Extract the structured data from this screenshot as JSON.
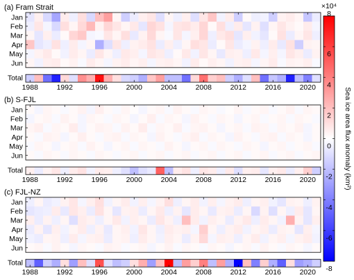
{
  "chart_data": {
    "type": "heatmap",
    "months": [
      "Jan",
      "Feb",
      "Mar",
      "Apr",
      "May",
      "Jun"
    ],
    "total_label": "Total",
    "years": [
      1988,
      1989,
      1990,
      1991,
      1992,
      1993,
      1994,
      1995,
      1996,
      1997,
      1998,
      1999,
      2000,
      2001,
      2002,
      2003,
      2004,
      2005,
      2006,
      2007,
      2008,
      2009,
      2010,
      2011,
      2012,
      2013,
      2014,
      2015,
      2016,
      2017,
      2018,
      2019,
      2020,
      2021
    ],
    "x_ticks": [
      1988,
      1992,
      1996,
      2000,
      2004,
      2008,
      2012,
      2016,
      2020
    ],
    "x_tick_labels": [
      "1988",
      "1992",
      "1996",
      "2000",
      "2004",
      "2008",
      "2012",
      "2016",
      "2020"
    ],
    "colorbar": {
      "label": "Sea ice area flux anomaly (km²)",
      "multiplier": "×10⁴",
      "ticks": [
        8,
        6,
        4,
        2,
        0,
        -2,
        -4,
        -6,
        -8
      ],
      "tick_labels": [
        "8",
        "6",
        "4",
        "2",
        "0",
        "-2",
        "-4",
        "-6",
        "-8"
      ],
      "range": [
        -8,
        8
      ],
      "colors": {
        "max": "#ff0000",
        "mid": "#ffffff",
        "min": "#0000ff"
      }
    },
    "panels": [
      {
        "title": "(a) Fram Strait",
        "monthly": [
          [
            -0.8,
            0.5,
            -1.2,
            -2.8,
            0.6,
            -0.5,
            1.0,
            -1.2,
            2.0,
            3.0,
            0.3,
            -1.5,
            -0.6,
            0.5,
            0.8,
            -1.0,
            0.3,
            -0.5,
            0.5,
            -1.0,
            0.8,
            1.8,
            -0.4,
            0.6,
            -1.5,
            0.2,
            -0.5,
            -0.4,
            -1.5,
            0.4,
            0.6,
            0.3,
            -1.8,
            -0.6
          ],
          [
            -0.5,
            0.8,
            -0.3,
            -1.2,
            1.0,
            0.3,
            1.2,
            2.2,
            0.4,
            1.3,
            0.8,
            0.3,
            0.7,
            -0.8,
            1.3,
            0.9,
            -0.3,
            0.8,
            0.9,
            0.6,
            1.3,
            0.2,
            1.0,
            -0.5,
            0.6,
            -0.8,
            0.4,
            -1.0,
            0.3,
            0.8,
            0.4,
            0.2,
            0.6,
            -0.3
          ],
          [
            0.3,
            -0.8,
            0.5,
            -0.6,
            0.2,
            1.3,
            1.7,
            -0.3,
            -0.2,
            0.8,
            0.3,
            1.0,
            -0.7,
            0.4,
            1.2,
            0.3,
            -0.2,
            0.8,
            -0.3,
            0.5,
            1.3,
            -0.5,
            0.7,
            1.0,
            -0.8,
            0.5,
            -0.4,
            -0.8,
            0.2,
            0.9,
            -0.6,
            0.3,
            0.8,
            -0.5
          ],
          [
            1.8,
            -0.8,
            -0.5,
            0.9,
            -0.5,
            0.6,
            -0.3,
            0.3,
            -2.5,
            -1.0,
            0.8,
            -0.5,
            0.4,
            0.6,
            0.9,
            -0.6,
            0.5,
            -0.5,
            0.3,
            1.0,
            0.8,
            -0.6,
            0.2,
            0.8,
            -0.6,
            -0.3,
            0.4,
            -0.5,
            0.6,
            -0.7,
            0.9,
            -1.5,
            0.4,
            0.3
          ],
          [
            -0.3,
            0.4,
            0.7,
            0.2,
            -0.4,
            0.6,
            0.3,
            -0.6,
            0.8,
            0.3,
            -0.5,
            0.7,
            0.5,
            -0.3,
            0.8,
            0.6,
            -0.5,
            0.2,
            0.7,
            -0.4,
            0.8,
            0.3,
            -0.7,
            0.5,
            0.4,
            -0.5,
            0.7,
            -0.3,
            0.5,
            -0.3,
            0.8,
            0.5,
            -0.6,
            0.4
          ],
          [
            0.3,
            -0.4,
            0.5,
            0.6,
            0.2,
            0.4,
            -0.2,
            0.6,
            0.3,
            -0.3,
            0.4,
            0.6,
            0.3,
            0.5,
            -0.3,
            0.4,
            0.5,
            0.3,
            -0.4,
            0.6,
            0.2,
            0.5,
            0.3,
            -0.4,
            0.4,
            0.5,
            -0.3,
            0.3,
            0.6,
            -0.2,
            0.4,
            0.3,
            0.5,
            -0.2
          ]
        ],
        "total": [
          -1.5,
          2.0,
          -4.5,
          -7.0,
          1.2,
          -1.0,
          3.5,
          2.5,
          7.5,
          2.5,
          1.0,
          -1.2,
          -1.5,
          -2.5,
          1.8,
          3.0,
          -2.0,
          -2.0,
          -4.5,
          1.2,
          4.5,
          1.5,
          2.0,
          -1.5,
          -2.5,
          -1.0,
          2.0,
          -4.5,
          -1.8,
          -2.5,
          -7.0,
          -2.0,
          -4.0,
          -1.0
        ]
      },
      {
        "title": "(b) S-FJL",
        "monthly": [
          [
            0.2,
            -0.3,
            0.3,
            0.2,
            -0.2,
            0.2,
            0.4,
            -0.3,
            0.5,
            0.2,
            -0.2,
            0.3,
            0.1,
            -0.3,
            0.2,
            0.3,
            -0.2,
            0.4,
            0.2,
            -0.2,
            0.3,
            0.2,
            -0.2,
            0.1,
            0.3,
            -0.2,
            0.2,
            0.3,
            -0.2,
            0.2,
            0.4,
            -0.2,
            0.3,
            0.2
          ],
          [
            -0.3,
            0.2,
            0.3,
            -0.2,
            0.4,
            0.2,
            -0.3,
            0.3,
            0.2,
            -0.2,
            0.3,
            0.2,
            -0.3,
            0.2,
            0.5,
            -0.2,
            0.3,
            0.2,
            -0.3,
            0.4,
            0.2,
            -0.2,
            0.3,
            0.2,
            -0.3,
            0.2,
            0.3,
            -0.2,
            0.2,
            0.3,
            -0.2,
            0.3,
            0.2,
            -0.2
          ],
          [
            0.3,
            0.5,
            -0.2,
            0.3,
            0.2,
            0.6,
            -0.3,
            0.2,
            0.4,
            0.3,
            -0.2,
            0.4,
            0.2,
            0.6,
            -0.2,
            0.3,
            0.2,
            0.5,
            -0.2,
            0.3,
            0.4,
            0.2,
            -0.3,
            0.2,
            0.3,
            -0.2,
            0.4,
            0.3,
            -0.2,
            0.3,
            0.2,
            0.4,
            -0.3,
            0.2
          ],
          [
            0.2,
            -0.2,
            0.4,
            0.3,
            -0.3,
            0.2,
            0.5,
            0.2,
            -0.2,
            0.3,
            0.4,
            -0.2,
            0.3,
            0.2,
            -0.3,
            0.4,
            0.2,
            -0.2,
            0.3,
            0.5,
            -0.2,
            0.3,
            0.2,
            -0.3,
            0.4,
            0.2,
            -0.2,
            0.3,
            0.4,
            -0.2,
            0.3,
            0.2,
            -0.3,
            0.2
          ],
          [
            -0.2,
            0.3,
            0.2,
            -0.3,
            0.2,
            0.3,
            -0.2,
            0.4,
            0.2,
            -0.3,
            0.2,
            0.3,
            -0.2,
            0.3,
            0.2,
            -0.2,
            0.4,
            0.2,
            -0.3,
            0.2,
            0.3,
            -0.2,
            0.3,
            0.2,
            -0.2,
            0.3,
            0.2,
            -0.3,
            0.2,
            0.3,
            -0.2,
            0.2,
            0.3,
            -0.2
          ],
          [
            0.2,
            -0.2,
            0.3,
            0.2,
            -0.2,
            0.3,
            0.2,
            -0.2,
            0.3,
            0.2,
            -0.2,
            0.2,
            0.3,
            -0.2,
            0.2,
            0.3,
            -0.2,
            0.2,
            0.3,
            -0.2,
            0.2,
            0.3,
            -0.2,
            0.2,
            0.3,
            -0.2,
            0.2,
            0.3,
            -0.2,
            0.2,
            0.3,
            -0.2,
            0.2,
            0.3
          ]
        ],
        "total": [
          0.5,
          -0.6,
          0.4,
          0.8,
          -0.5,
          0.6,
          0.9,
          -0.4,
          0.6,
          0.5,
          -0.5,
          -1.0,
          -2.0,
          -1.0,
          -0.7,
          5.0,
          -2.0,
          0.6,
          0.9,
          -0.5,
          0.8,
          0.6,
          -0.5,
          0.7,
          -1.0,
          0.5,
          0.6,
          -0.8,
          0.5,
          0.7,
          -0.6,
          0.5,
          1.5,
          -1.5
        ]
      },
      {
        "title": "(c) FJL-NZ",
        "monthly": [
          [
            -0.5,
            0.3,
            -0.6,
            -0.4,
            0.4,
            0.8,
            -0.3,
            0.5,
            1.0,
            -0.4,
            0.3,
            0.6,
            -0.4,
            0.5,
            -0.3,
            0.4,
            1.0,
            -0.5,
            0.3,
            0.6,
            -0.4,
            0.5,
            -0.3,
            0.4,
            0.6,
            -0.5,
            0.3,
            0.5,
            -0.4,
            -0.8,
            0.4,
            0.3,
            -0.5,
            0.4
          ],
          [
            -0.8,
            -0.6,
            -0.5,
            0.6,
            -0.7,
            0.8,
            0.5,
            -0.6,
            0.9,
            0.3,
            -0.8,
            0.4,
            0.5,
            -0.6,
            0.3,
            0.7,
            -0.5,
            0.4,
            -0.8,
            0.6,
            0.3,
            -0.7,
            0.4,
            0.5,
            -0.6,
            0.3,
            -1.2,
            0.4,
            -1.0,
            0.3,
            -0.5,
            0.6,
            -0.8,
            0.3
          ],
          [
            0.5,
            -0.6,
            0.4,
            -0.5,
            0.3,
            -1.0,
            0.6,
            0.4,
            -0.5,
            0.3,
            0.7,
            -0.4,
            0.5,
            0.3,
            -0.6,
            0.8,
            0.4,
            -0.5,
            2.0,
            0.6,
            -0.4,
            0.5,
            0.3,
            -0.6,
            0.4,
            0.7,
            -0.5,
            0.6,
            0.3,
            -0.4,
            2.5,
            0.4,
            -0.8,
            0.5
          ],
          [
            -0.6,
            0.4,
            -0.8,
            0.5,
            -0.4,
            0.3,
            0.6,
            -0.5,
            0.4,
            -0.7,
            0.3,
            0.5,
            -0.4,
            0.8,
            0.3,
            -0.5,
            0.6,
            0.4,
            0.5,
            -0.3,
            1.5,
            0.3,
            -0.5,
            0.4,
            0.6,
            -0.4,
            0.3,
            0.5,
            -0.6,
            0.4,
            0.3,
            -0.8,
            0.5,
            -0.3
          ],
          [
            -0.4,
            -0.6,
            0.3,
            0.4,
            -0.5,
            0.6,
            -0.3,
            0.4,
            0.5,
            -0.6,
            0.3,
            0.4,
            -0.5,
            0.6,
            0.3,
            -0.4,
            0.5,
            0.3,
            -0.6,
            0.4,
            1.2,
            -0.3,
            0.5,
            0.4,
            -0.5,
            0.3,
            0.6,
            -0.4,
            0.3,
            0.5,
            -0.3,
            0.4,
            0.6,
            -0.4
          ],
          [
            0.2,
            0.3,
            -0.2,
            0.4,
            0.2,
            -0.3,
            0.3,
            0.2,
            -0.2,
            0.4,
            0.3,
            -0.2,
            0.2,
            0.3,
            -0.3,
            0.2,
            0.4,
            -0.2,
            0.3,
            0.2,
            -0.2,
            0.3,
            0.2,
            -0.3,
            0.2,
            0.3,
            -0.2,
            0.4,
            0.2,
            -0.2,
            0.3,
            0.2,
            -0.3,
            0.2
          ]
        ],
        "total": [
          -2.0,
          -5.0,
          -1.5,
          -2.5,
          1.0,
          -3.0,
          2.0,
          -1.0,
          5.5,
          -1.0,
          -2.0,
          -1.5,
          1.0,
          2.5,
          -3.0,
          2.0,
          8.0,
          -2.0,
          3.0,
          1.5,
          4.0,
          -2.0,
          3.0,
          -2.5,
          -8.0,
          2.0,
          -4.0,
          1.5,
          -2.5,
          -5.0,
          1.0,
          -3.0,
          -2.5,
          -1.5
        ]
      }
    ]
  }
}
